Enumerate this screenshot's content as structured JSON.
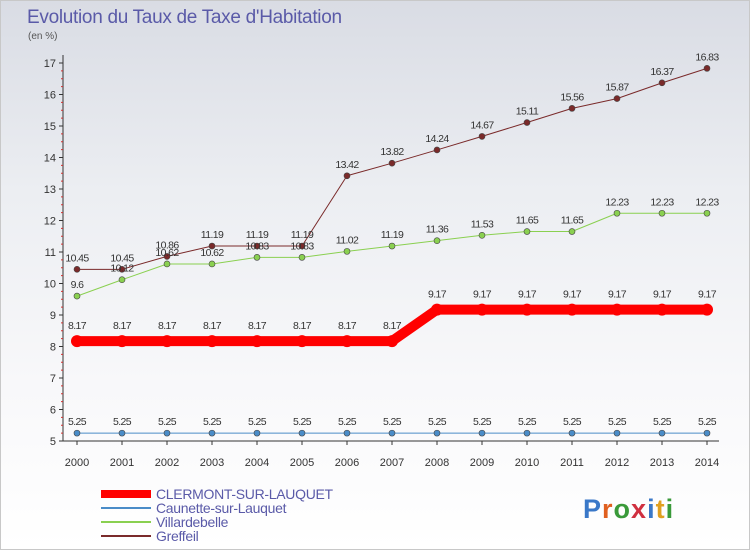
{
  "title": "Evolution du Taux de Taxe d'Habitation",
  "subtitle": "(en %)",
  "logo": {
    "letters": [
      "P",
      "r",
      "o",
      "x",
      "i",
      "t",
      "i"
    ],
    "colors": [
      "#3a78c8",
      "#e06020",
      "#3a9a3a",
      "#d03040",
      "#3a78c8",
      "#e0a020",
      "#3a9a3a"
    ]
  },
  "chart_data": {
    "type": "line",
    "title": "Evolution du Taux de Taxe d'Habitation",
    "ylabel": "(en %)",
    "xlabel": "",
    "x": [
      "2000",
      "2001",
      "2002",
      "2003",
      "2004",
      "2005",
      "2006",
      "2007",
      "2008",
      "2009",
      "2010",
      "2011",
      "2012",
      "2013",
      "2014"
    ],
    "ylim": [
      5,
      17
    ],
    "yticks": [
      "5",
      "6",
      "7",
      "8",
      "9",
      "10",
      "11",
      "12",
      "13",
      "14",
      "15",
      "16",
      "17"
    ],
    "grid": false,
    "legend_position": "bottom-left",
    "series": [
      {
        "name": "CLERMONT-SUR-LAUQUET",
        "color": "#ff0000",
        "width": 10,
        "values": [
          8.17,
          8.17,
          8.17,
          8.17,
          8.17,
          8.17,
          8.17,
          8.17,
          9.17,
          9.17,
          9.17,
          9.17,
          9.17,
          9.17,
          9.17
        ],
        "labels": [
          "8.17",
          "8.17",
          "8.17",
          "8.17",
          "8.17",
          "8.17",
          "8.17",
          "8.17",
          "9.17",
          "9.17",
          "9.17",
          "9.17",
          "9.17",
          "9.17",
          "9.17"
        ]
      },
      {
        "name": "Caunette-sur-Lauquet",
        "color": "#4a8cc8",
        "width": 1,
        "values": [
          5.25,
          5.25,
          5.25,
          5.25,
          5.25,
          5.25,
          5.25,
          5.25,
          5.25,
          5.25,
          5.25,
          5.25,
          5.25,
          5.25,
          5.25
        ],
        "labels": [
          "5.25",
          "5.25",
          "5.25",
          "5.25",
          "5.25",
          "5.25",
          "5.25",
          "5.25",
          "5.25",
          "5.25",
          "5.25",
          "5.25",
          "5.25",
          "5.25",
          "5.25"
        ]
      },
      {
        "name": "Villardebelle",
        "color": "#8ad050",
        "width": 1,
        "values": [
          9.6,
          10.12,
          10.62,
          10.62,
          10.83,
          10.83,
          11.02,
          11.19,
          11.36,
          11.53,
          11.65,
          11.65,
          12.23,
          12.23,
          12.23
        ],
        "labels": [
          "9.6",
          "10.12",
          "10.62",
          "10.62",
          "10.83",
          "10.83",
          "11.02",
          "11.19",
          "11.36",
          "11.53",
          "11.65",
          "11.65",
          "12.23",
          "12.23",
          "12.23"
        ]
      },
      {
        "name": "Greffeil",
        "color": "#7a2a2a",
        "width": 1,
        "values": [
          10.45,
          10.45,
          10.86,
          11.19,
          11.19,
          11.19,
          13.42,
          13.82,
          14.24,
          14.67,
          15.11,
          15.56,
          15.87,
          16.37,
          16.83
        ],
        "labels": [
          "10.45",
          "10.45",
          "10.86",
          "11.19",
          "11.19",
          "11.19",
          "13.42",
          "13.82",
          "14.24",
          "14.67",
          "15.11",
          "15.56",
          "15.87",
          "16.37",
          "16.83"
        ]
      }
    ]
  }
}
